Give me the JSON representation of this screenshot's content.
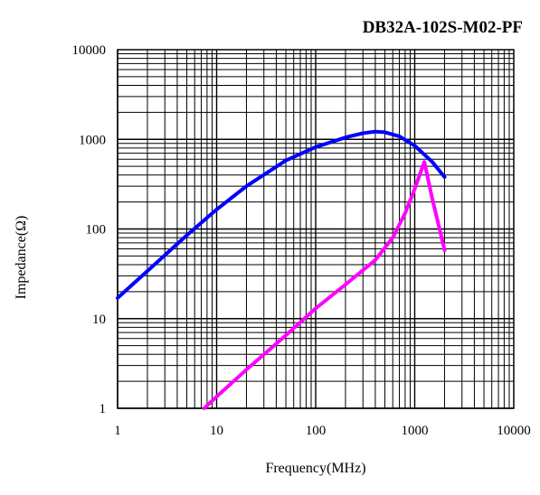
{
  "chart_data": {
    "type": "line",
    "title": "DB32A-102S-M02-PF",
    "xlabel": "Frequency(MHz)",
    "ylabel": "Impedance(Ω)",
    "xscale": "log",
    "yscale": "log",
    "xlim": [
      1,
      10000
    ],
    "ylim": [
      1,
      10000
    ],
    "grid": true,
    "x_ticks": [
      {
        "value": 1,
        "label": "1"
      },
      {
        "value": 10,
        "label": "10"
      },
      {
        "value": 100,
        "label": "100"
      },
      {
        "value": 1000,
        "label": "1000"
      },
      {
        "value": 10000,
        "label": "10000"
      }
    ],
    "y_ticks": [
      {
        "value": 1,
        "label": "1"
      },
      {
        "value": 10,
        "label": "10"
      },
      {
        "value": 100,
        "label": "100"
      },
      {
        "value": 1000,
        "label": "1000"
      },
      {
        "value": 10000,
        "label": "10000"
      }
    ],
    "series": [
      {
        "color": "#0000ff",
        "points": [
          [
            1,
            17
          ],
          [
            2,
            34
          ],
          [
            5,
            85
          ],
          [
            10,
            165
          ],
          [
            20,
            300
          ],
          [
            50,
            580
          ],
          [
            100,
            820
          ],
          [
            200,
            1050
          ],
          [
            300,
            1170
          ],
          [
            400,
            1220
          ],
          [
            500,
            1200
          ],
          [
            700,
            1080
          ],
          [
            1000,
            850
          ],
          [
            1500,
            560
          ],
          [
            2000,
            380
          ]
        ]
      },
      {
        "color": "#ff00ff",
        "points": [
          [
            7.5,
            1
          ],
          [
            10,
            1.35
          ],
          [
            20,
            2.7
          ],
          [
            50,
            6.5
          ],
          [
            100,
            13
          ],
          [
            200,
            24
          ],
          [
            400,
            45
          ],
          [
            600,
            80
          ],
          [
            800,
            150
          ],
          [
            1000,
            280
          ],
          [
            1250,
            560
          ],
          [
            1500,
            220
          ],
          [
            1800,
            95
          ],
          [
            2000,
            58
          ]
        ]
      }
    ]
  }
}
